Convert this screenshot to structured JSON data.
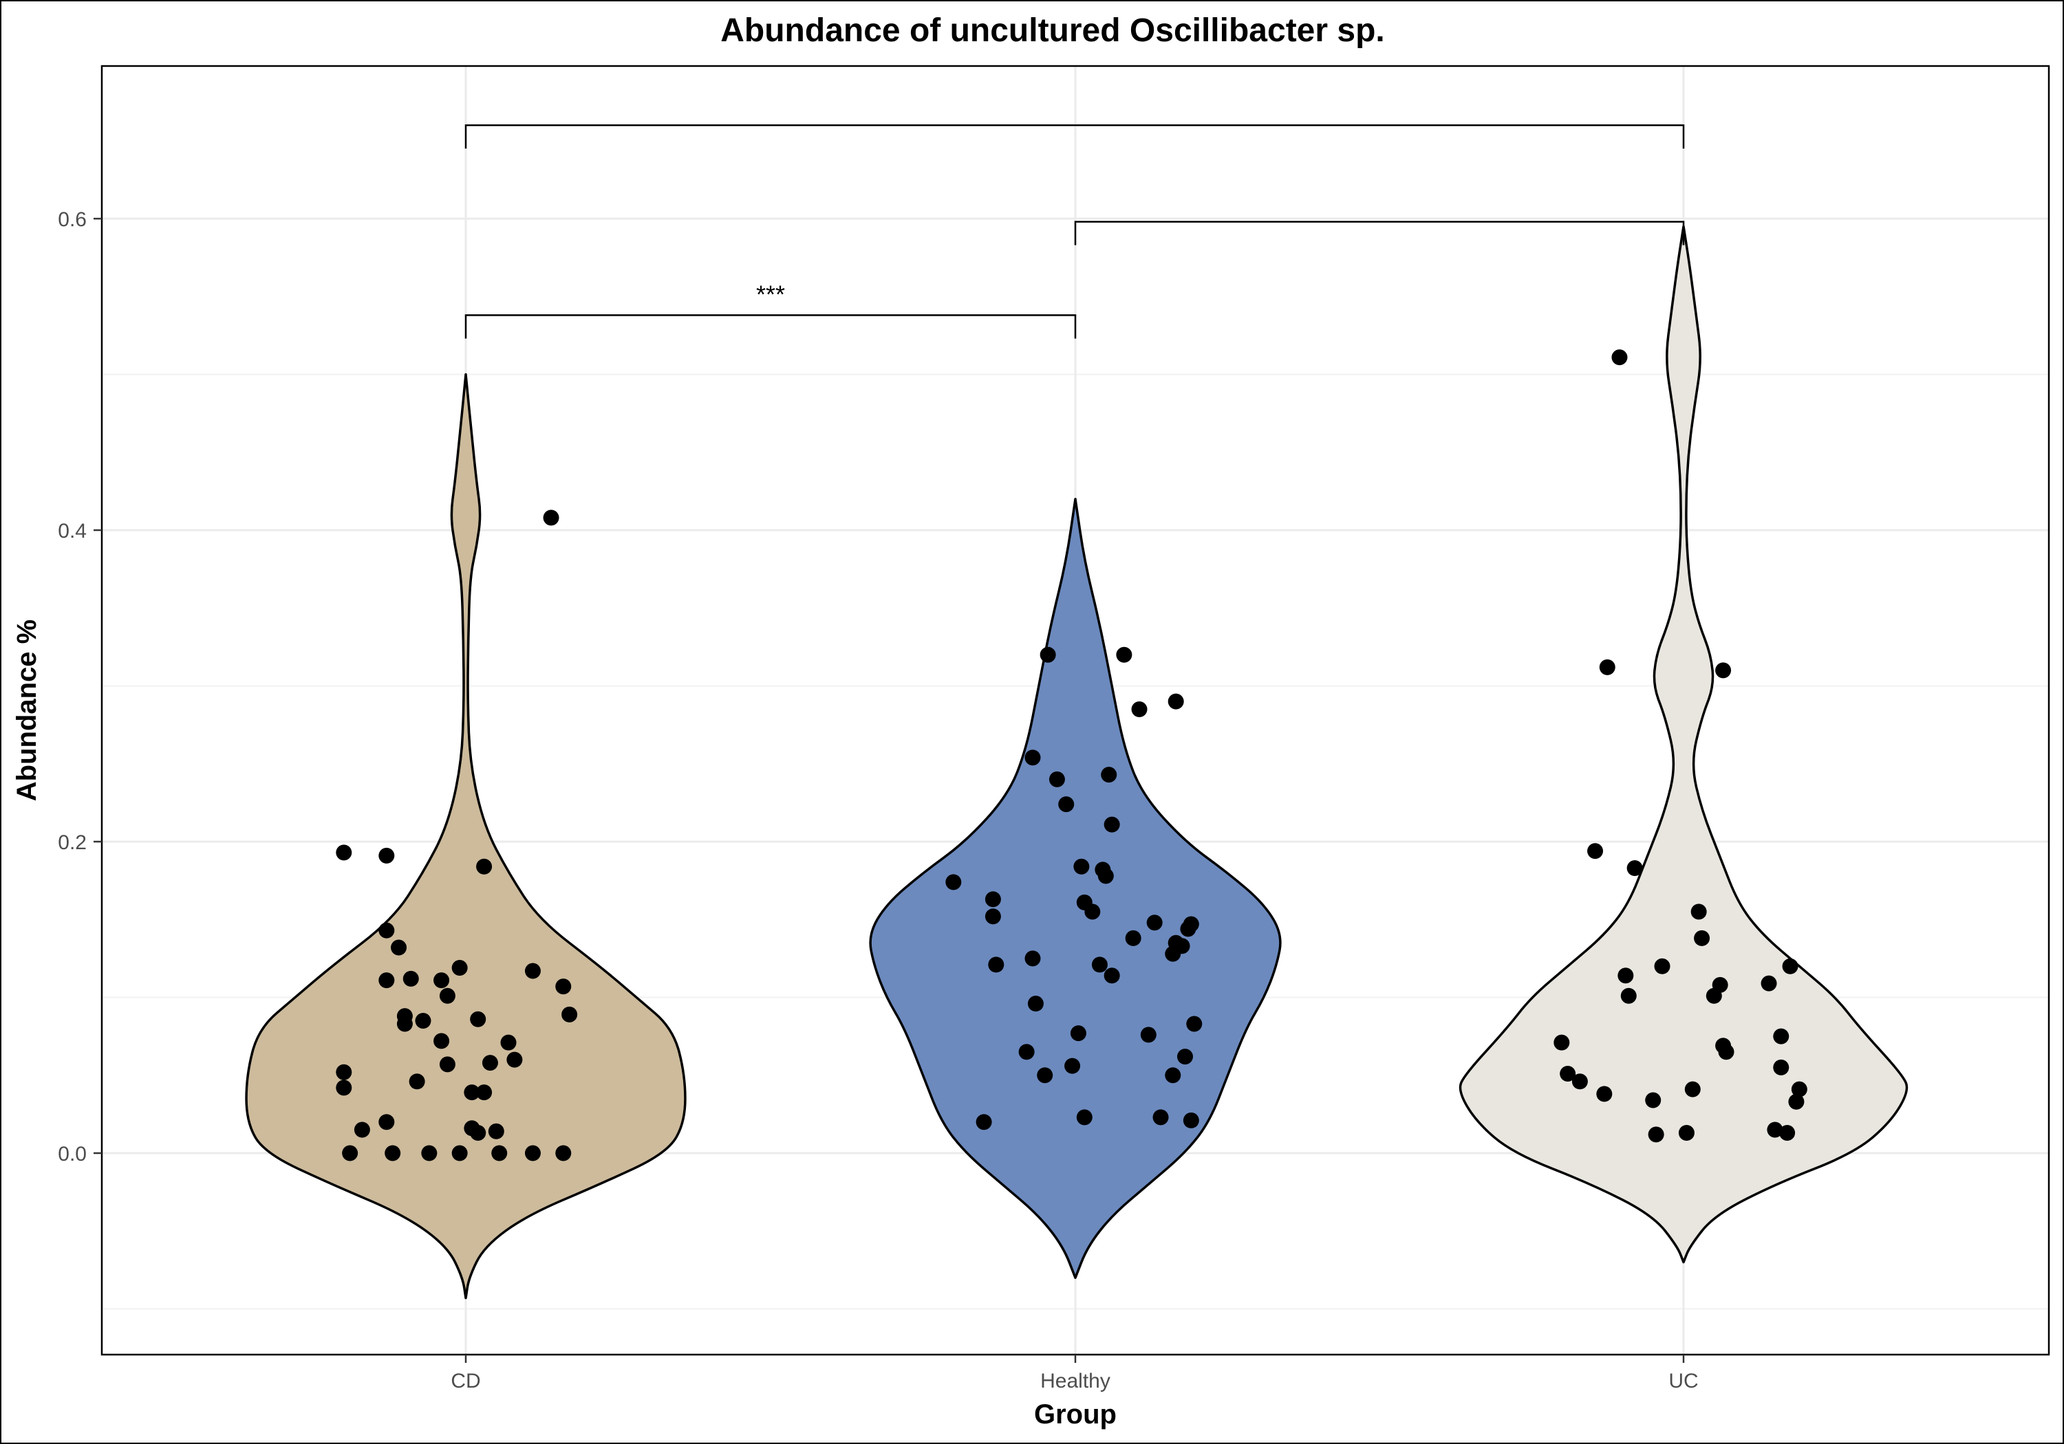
{
  "chart_data": {
    "type": "violin",
    "title": "Abundance of uncultured Oscillibacter sp.",
    "xlabel": "Group",
    "ylabel": "Abundance %",
    "categories": [
      "CD",
      "Healthy",
      "UC"
    ],
    "ylim": [
      -0.13,
      0.7
    ],
    "yticks": [
      0.0,
      0.2,
      0.4,
      0.6
    ],
    "ytick_labels": [
      "0.0",
      "0.2",
      "0.4",
      "0.6"
    ],
    "grid": true,
    "colors": {
      "CD": "#cdbb9c",
      "Healthy": "#6c8abe",
      "UC": "#e8e6df"
    },
    "violins": [
      {
        "group": "CD",
        "ymin": -0.093,
        "ymax": 0.5,
        "profile": [
          [
            -0.093,
            0.0
          ],
          [
            -0.08,
            0.005
          ],
          [
            -0.06,
            0.03
          ],
          [
            -0.04,
            0.1
          ],
          [
            -0.02,
            0.22
          ],
          [
            0.0,
            0.33
          ],
          [
            0.02,
            0.36
          ],
          [
            0.05,
            0.36
          ],
          [
            0.08,
            0.34
          ],
          [
            0.1,
            0.28
          ],
          [
            0.12,
            0.22
          ],
          [
            0.15,
            0.12
          ],
          [
            0.18,
            0.07
          ],
          [
            0.21,
            0.03
          ],
          [
            0.25,
            0.007
          ],
          [
            0.29,
            0.003
          ],
          [
            0.33,
            0.004
          ],
          [
            0.37,
            0.007
          ],
          [
            0.39,
            0.018
          ],
          [
            0.41,
            0.025
          ],
          [
            0.43,
            0.018
          ],
          [
            0.46,
            0.01
          ],
          [
            0.5,
            0.0
          ]
        ]
      },
      {
        "group": "Healthy",
        "ymin": -0.08,
        "ymax": 0.42,
        "profile": [
          [
            -0.08,
            0.0
          ],
          [
            -0.06,
            0.02
          ],
          [
            -0.04,
            0.06
          ],
          [
            -0.02,
            0.12
          ],
          [
            0.0,
            0.18
          ],
          [
            0.02,
            0.22
          ],
          [
            0.05,
            0.25
          ],
          [
            0.08,
            0.28
          ],
          [
            0.1,
            0.31
          ],
          [
            0.12,
            0.33
          ],
          [
            0.14,
            0.34
          ],
          [
            0.16,
            0.31
          ],
          [
            0.18,
            0.25
          ],
          [
            0.2,
            0.18
          ],
          [
            0.23,
            0.11
          ],
          [
            0.26,
            0.08
          ],
          [
            0.3,
            0.06
          ],
          [
            0.34,
            0.04
          ],
          [
            0.38,
            0.015
          ],
          [
            0.42,
            0.0
          ]
        ]
      },
      {
        "group": "UC",
        "ymin": -0.07,
        "ymax": 0.595,
        "profile": [
          [
            -0.07,
            0.0
          ],
          [
            -0.06,
            0.01
          ],
          [
            -0.04,
            0.05
          ],
          [
            -0.02,
            0.15
          ],
          [
            0.0,
            0.28
          ],
          [
            0.02,
            0.34
          ],
          [
            0.04,
            0.37
          ],
          [
            0.05,
            0.36
          ],
          [
            0.08,
            0.29
          ],
          [
            0.1,
            0.25
          ],
          [
            0.12,
            0.19
          ],
          [
            0.14,
            0.13
          ],
          [
            0.16,
            0.09
          ],
          [
            0.19,
            0.06
          ],
          [
            0.22,
            0.03
          ],
          [
            0.25,
            0.012
          ],
          [
            0.28,
            0.03
          ],
          [
            0.3,
            0.05
          ],
          [
            0.32,
            0.045
          ],
          [
            0.34,
            0.025
          ],
          [
            0.36,
            0.012
          ],
          [
            0.39,
            0.005
          ],
          [
            0.42,
            0.004
          ],
          [
            0.45,
            0.008
          ],
          [
            0.48,
            0.018
          ],
          [
            0.51,
            0.03
          ],
          [
            0.54,
            0.02
          ],
          [
            0.57,
            0.01
          ],
          [
            0.595,
            0.0
          ]
        ]
      }
    ],
    "points": [
      {
        "group": "CD",
        "values": [
          [
            -0.2,
            0.193
          ],
          [
            -0.13,
            0.191
          ],
          [
            0.03,
            0.184
          ],
          [
            0.14,
            0.408
          ],
          [
            -0.13,
            0.143
          ],
          [
            -0.11,
            0.132
          ],
          [
            -0.13,
            0.111
          ],
          [
            -0.09,
            0.112
          ],
          [
            -0.04,
            0.111
          ],
          [
            -0.01,
            0.119
          ],
          [
            -0.03,
            0.101
          ],
          [
            0.11,
            0.117
          ],
          [
            0.16,
            0.107
          ],
          [
            0.17,
            0.089
          ],
          [
            -0.1,
            0.088
          ],
          [
            -0.1,
            0.083
          ],
          [
            -0.07,
            0.085
          ],
          [
            -0.04,
            0.072
          ],
          [
            0.02,
            0.086
          ],
          [
            0.07,
            0.071
          ],
          [
            0.08,
            0.06
          ],
          [
            0.04,
            0.058
          ],
          [
            -0.03,
            0.057
          ],
          [
            -0.08,
            0.046
          ],
          [
            -0.2,
            0.052
          ],
          [
            -0.2,
            0.042
          ],
          [
            0.01,
            0.039
          ],
          [
            0.03,
            0.039
          ],
          [
            -0.17,
            0.015
          ],
          [
            -0.13,
            0.02
          ],
          [
            0.01,
            0.016
          ],
          [
            0.02,
            0.013
          ],
          [
            0.05,
            0.014
          ],
          [
            -0.19,
            0.0
          ],
          [
            -0.12,
            0.0
          ],
          [
            -0.06,
            0.0
          ],
          [
            -0.01,
            0.0
          ],
          [
            0.055,
            0.0
          ],
          [
            0.11,
            0.0
          ],
          [
            0.16,
            0.0
          ]
        ]
      },
      {
        "group": "Healthy",
        "values": [
          [
            -0.045,
            0.32
          ],
          [
            0.08,
            0.32
          ],
          [
            0.105,
            0.285
          ],
          [
            0.165,
            0.29
          ],
          [
            -0.07,
            0.254
          ],
          [
            -0.03,
            0.24
          ],
          [
            -0.015,
            0.224
          ],
          [
            0.055,
            0.243
          ],
          [
            0.06,
            0.211
          ],
          [
            0.01,
            0.184
          ],
          [
            0.045,
            0.182
          ],
          [
            0.05,
            0.178
          ],
          [
            -0.2,
            0.174
          ],
          [
            -0.135,
            0.163
          ],
          [
            -0.135,
            0.152
          ],
          [
            0.015,
            0.161
          ],
          [
            0.028,
            0.155
          ],
          [
            0.13,
            0.148
          ],
          [
            0.19,
            0.147
          ],
          [
            0.185,
            0.144
          ],
          [
            0.095,
            0.138
          ],
          [
            0.165,
            0.135
          ],
          [
            0.175,
            0.133
          ],
          [
            0.16,
            0.128
          ],
          [
            -0.07,
            0.125
          ],
          [
            -0.13,
            0.121
          ],
          [
            0.04,
            0.121
          ],
          [
            0.06,
            0.114
          ],
          [
            -0.065,
            0.096
          ],
          [
            0.005,
            0.077
          ],
          [
            0.12,
            0.076
          ],
          [
            0.195,
            0.083
          ],
          [
            -0.08,
            0.065
          ],
          [
            -0.05,
            0.05
          ],
          [
            -0.005,
            0.056
          ],
          [
            0.16,
            0.05
          ],
          [
            0.18,
            0.062
          ],
          [
            -0.15,
            0.02
          ],
          [
            0.015,
            0.023
          ],
          [
            0.14,
            0.023
          ],
          [
            0.19,
            0.021
          ]
        ]
      },
      {
        "group": "UC",
        "values": [
          [
            -0.105,
            0.511
          ],
          [
            -0.125,
            0.312
          ],
          [
            0.065,
            0.31
          ],
          [
            -0.145,
            0.194
          ],
          [
            -0.08,
            0.183
          ],
          [
            -0.095,
            0.114
          ],
          [
            -0.09,
            0.101
          ],
          [
            -0.035,
            0.12
          ],
          [
            0.025,
            0.155
          ],
          [
            0.03,
            0.138
          ],
          [
            0.05,
            0.101
          ],
          [
            0.06,
            0.108
          ],
          [
            0.14,
            0.109
          ],
          [
            0.175,
            0.12
          ],
          [
            -0.2,
            0.071
          ],
          [
            -0.19,
            0.051
          ],
          [
            -0.17,
            0.046
          ],
          [
            -0.13,
            0.038
          ],
          [
            -0.05,
            0.034
          ],
          [
            0.065,
            0.069
          ],
          [
            0.07,
            0.065
          ],
          [
            0.015,
            0.041
          ],
          [
            0.16,
            0.075
          ],
          [
            0.16,
            0.055
          ],
          [
            0.19,
            0.041
          ],
          [
            0.185,
            0.033
          ],
          [
            -0.045,
            0.012
          ],
          [
            0.005,
            0.013
          ],
          [
            0.15,
            0.015
          ],
          [
            0.17,
            0.013
          ]
        ]
      }
    ],
    "comparisons": [
      {
        "from": "CD",
        "to": "UC",
        "y": 0.66,
        "label": ""
      },
      {
        "from": "Healthy",
        "to": "UC",
        "y": 0.598,
        "label": ""
      },
      {
        "from": "CD",
        "to": "Healthy",
        "y": 0.538,
        "label": "***"
      }
    ]
  }
}
